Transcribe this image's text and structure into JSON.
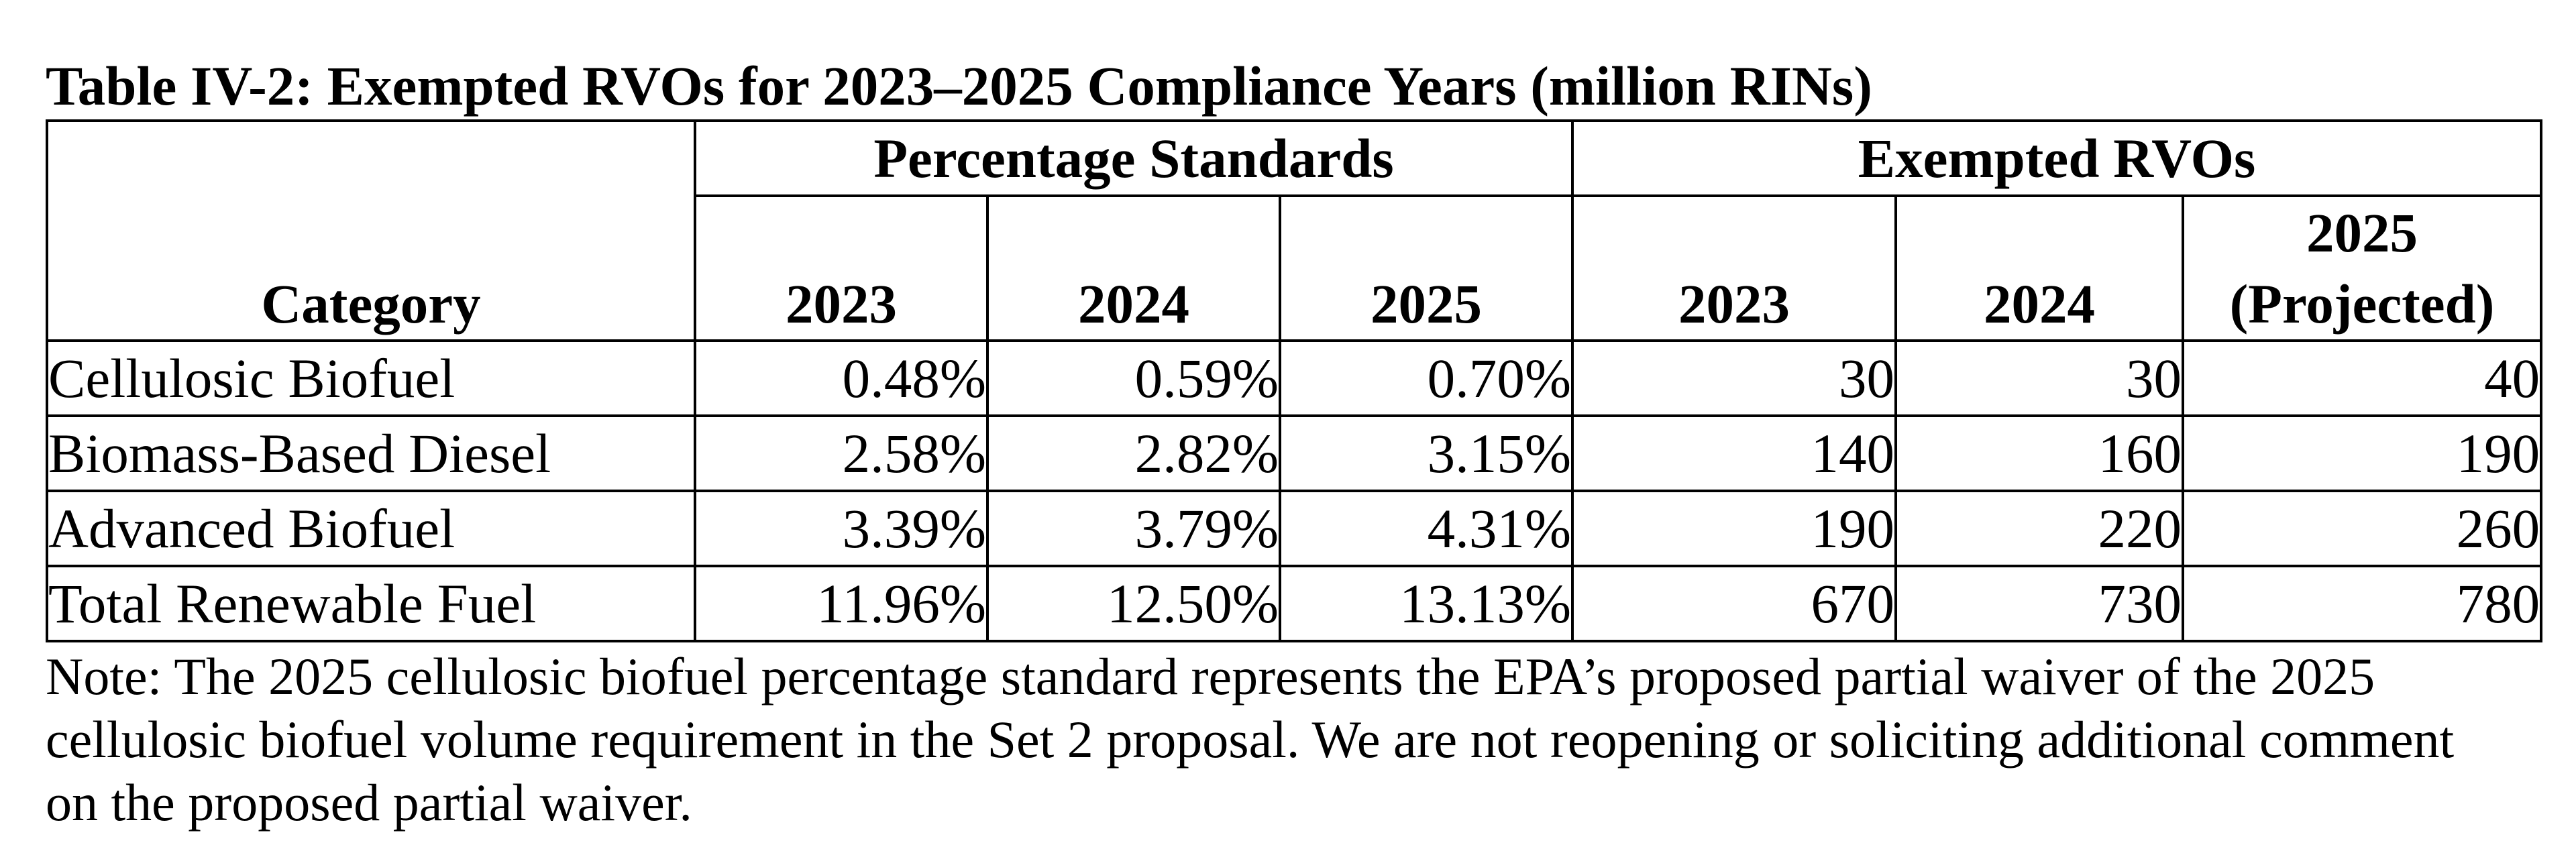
{
  "title": "Table IV-2: Exempted RVOs for 2023–2025 Compliance Years (million RINs)",
  "headers": {
    "category": "Category",
    "pct_group": "Percentage Standards",
    "rvo_group": "Exempted RVOs",
    "pct_years": [
      "2023",
      "2024",
      "2025"
    ],
    "rvo_years": [
      "2023",
      "2024",
      "2025"
    ],
    "projected": "(Projected)"
  },
  "rows": [
    {
      "category": "Cellulosic Biofuel",
      "pct": [
        "0.48%",
        "0.59%",
        "0.70%"
      ],
      "rvo": [
        "30",
        "30",
        "40"
      ]
    },
    {
      "category": "Biomass-Based Diesel",
      "pct": [
        "2.58%",
        "2.82%",
        "3.15%"
      ],
      "rvo": [
        "140",
        "160",
        "190"
      ]
    },
    {
      "category": "Advanced Biofuel",
      "pct": [
        "3.39%",
        "3.79%",
        "4.31%"
      ],
      "rvo": [
        "190",
        "220",
        "260"
      ]
    },
    {
      "category": "Total Renewable Fuel",
      "pct": [
        "11.96%",
        "12.50%",
        "13.13%"
      ],
      "rvo": [
        "670",
        "730",
        "780"
      ]
    }
  ],
  "note_lines": [
    "Note: The 2025 cellulosic biofuel percentage standard represents the EPA’s proposed partial waiver of the 2025",
    "cellulosic biofuel volume requirement in the Set 2 proposal. We are not reopening or soliciting additional comment",
    "on the proposed partial waiver."
  ]
}
